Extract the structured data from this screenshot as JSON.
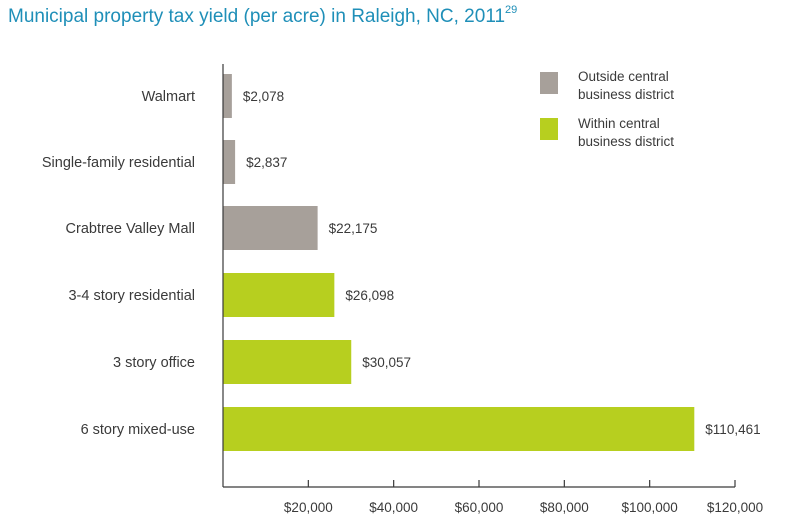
{
  "title": "Municipal property tax yield (per acre) in Raleigh, NC, 2011",
  "title_footnote": "29",
  "chart_data": {
    "type": "bar",
    "orientation": "horizontal",
    "title": "Municipal property tax yield (per acre) in Raleigh, NC, 2011",
    "categories": [
      "Walmart",
      "Single-family residential",
      "Crabtree Valley Mall",
      "3-4 story residential",
      "3 story office",
      "6 story mixed-use"
    ],
    "values": [
      2078,
      2837,
      22175,
      26098,
      30057,
      110461
    ],
    "value_labels": [
      "$2,078",
      "$2,837",
      "$22,175",
      "$26,098",
      "$30,057",
      "$110,461"
    ],
    "groups": [
      "Outside central business district",
      "Outside central business district",
      "Outside central business district",
      "Within central business district",
      "Within central business district",
      "Within central business district"
    ],
    "xlim": [
      0,
      120000
    ],
    "xticks": [
      20000,
      40000,
      60000,
      80000,
      100000,
      120000
    ],
    "xtick_labels": [
      "$20,000",
      "$40,000",
      "$60,000",
      "$80,000",
      "$100,000",
      "$120,000"
    ],
    "xlabel": "",
    "ylabel": "",
    "grid": false,
    "legend_position": "top-right",
    "legend": [
      {
        "name": "Outside central business district",
        "lines": [
          "Outside central",
          "business district"
        ],
        "color": "#a7a09a"
      },
      {
        "name": "Within central business district",
        "lines": [
          "Within central",
          "business district"
        ],
        "color": "#b7cf1f"
      }
    ]
  }
}
